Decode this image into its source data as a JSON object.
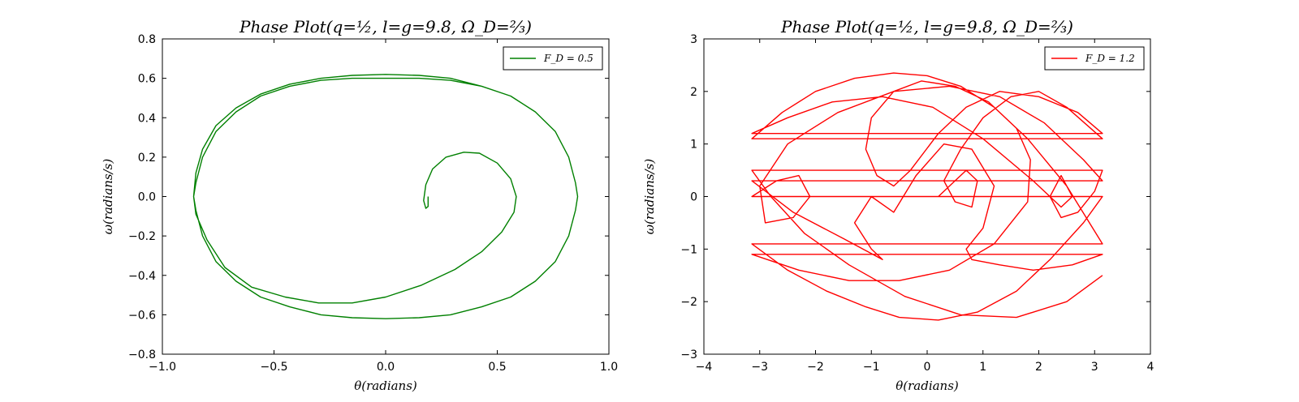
{
  "figure": {
    "background": "#ffffff"
  },
  "chart_data": [
    {
      "type": "line",
      "title": "Phase    Plot(q=½, l=g=9.8, Ω_D=⅔)",
      "xlabel": "θ(radians)",
      "ylabel": "ω(radians/s)",
      "xlim": [
        -1.0,
        1.0
      ],
      "ylim": [
        -0.8,
        0.8
      ],
      "xticks": [
        -1.0,
        -0.5,
        0.0,
        0.5,
        1.0
      ],
      "xtick_labels": [
        "−1.0",
        "−0.5",
        "0.0",
        "0.5",
        "1.0"
      ],
      "yticks": [
        -0.8,
        -0.6,
        -0.4,
        -0.2,
        0.0,
        0.2,
        0.4,
        0.6,
        0.8
      ],
      "ytick_labels": [
        "−0.8",
        "−0.6",
        "−0.4",
        "−0.2",
        "0.0",
        "0.2",
        "0.4",
        "0.6",
        "0.8"
      ],
      "grid": false,
      "legend_position": "top-right",
      "series": [
        {
          "name": "F_D = 0.5",
          "color": "#008000",
          "x": [
            0.19,
            0.19,
            0.18,
            0.17,
            0.18,
            0.21,
            0.27,
            0.35,
            0.42,
            0.5,
            0.56,
            0.585,
            0.575,
            0.52,
            0.43,
            0.31,
            0.16,
            0.0,
            -0.15,
            -0.3,
            -0.45,
            -0.6,
            -0.72,
            -0.8,
            -0.85,
            -0.86,
            -0.85,
            -0.82,
            -0.76,
            -0.67,
            -0.56,
            -0.43,
            -0.29,
            -0.15,
            0.0,
            0.15,
            0.29,
            0.43,
            0.56,
            0.67,
            0.76,
            0.82,
            0.85,
            0.86,
            0.85,
            0.82,
            0.76,
            0.67,
            0.56,
            0.43,
            0.29,
            0.15,
            0.0,
            -0.15,
            -0.29,
            -0.43,
            -0.56,
            -0.67,
            -0.76,
            -0.82,
            -0.85,
            -0.86,
            -0.85,
            -0.82,
            -0.76,
            -0.67,
            -0.56,
            -0.43,
            -0.29,
            -0.15,
            0.0,
            0.15,
            0.29,
            0.43,
            0.56,
            0.67,
            0.76,
            0.82,
            0.85,
            0.86
          ],
          "y": [
            0.0,
            -0.05,
            -0.06,
            -0.02,
            0.06,
            0.14,
            0.2,
            0.225,
            0.22,
            0.17,
            0.09,
            0.0,
            -0.08,
            -0.18,
            -0.28,
            -0.37,
            -0.45,
            -0.51,
            -0.54,
            -0.54,
            -0.51,
            -0.46,
            -0.36,
            -0.22,
            -0.09,
            0.0,
            0.12,
            0.24,
            0.36,
            0.45,
            0.52,
            0.57,
            0.6,
            0.615,
            0.62,
            0.615,
            0.6,
            0.56,
            0.51,
            0.43,
            0.33,
            0.2,
            0.07,
            0.0,
            -0.07,
            -0.2,
            -0.33,
            -0.43,
            -0.51,
            -0.56,
            -0.6,
            -0.615,
            -0.62,
            -0.615,
            -0.6,
            -0.56,
            -0.51,
            -0.43,
            -0.33,
            -0.2,
            -0.07,
            0.0,
            0.07,
            0.2,
            0.33,
            0.43,
            0.51,
            0.56,
            0.59,
            0.6,
            0.6,
            0.6,
            0.59,
            0.56,
            0.51,
            0.43,
            0.33,
            0.2,
            0.07,
            0.0
          ]
        }
      ]
    },
    {
      "type": "line",
      "title": "Phase    Plot(q=½, l=g=9.8, Ω_D=⅔)",
      "xlabel": "θ(radians)",
      "ylabel": "ω(radians/s)",
      "xlim": [
        -4,
        4
      ],
      "ylim": [
        -3,
        3
      ],
      "xticks": [
        -4,
        -3,
        -2,
        -1,
        0,
        1,
        2,
        3,
        4
      ],
      "xtick_labels": [
        "−4",
        "−3",
        "−2",
        "−1",
        "0",
        "1",
        "2",
        "3",
        "4"
      ],
      "yticks": [
        -3,
        -2,
        -1,
        0,
        1,
        2,
        3
      ],
      "ytick_labels": [
        "−3",
        "−2",
        "−1",
        "0",
        "1",
        "2",
        "3"
      ],
      "grid": false,
      "legend_position": "top-right",
      "series": [
        {
          "name": "F_D = 1.2",
          "color": "#ff0000",
          "x": [
            0.2,
            0.4,
            0.7,
            0.9,
            0.8,
            0.5,
            0.3,
            0.6,
            1.0,
            1.5,
            2.0,
            2.5,
            3.14,
            -3.14,
            -2.6,
            -2.0,
            -1.3,
            -0.6,
            0.0,
            0.6,
            1.2,
            1.8,
            2.5,
            3.14,
            -3.14,
            -2.5,
            -1.8,
            -1.1,
            -0.5,
            0.2,
            0.9,
            1.6,
            2.2,
            2.8,
            3.14,
            -3.14,
            -2.7,
            -2.3,
            -2.1,
            -2.4,
            -2.9,
            -3.0,
            -2.5,
            -1.6,
            -0.6,
            0.4,
            1.3,
            2.1,
            2.8,
            3.14,
            -3.14,
            -2.4,
            -1.5,
            -0.8,
            -1.0,
            -1.3,
            -1.0,
            -0.6,
            -0.2,
            0.3,
            0.8,
            1.2,
            1.0,
            0.7,
            0.8,
            1.3,
            1.9,
            2.6,
            3.14,
            -3.14,
            -2.3,
            -1.4,
            -0.5,
            0.4,
            1.2,
            1.8,
            1.85,
            1.6,
            1.1,
            0.5,
            -0.1,
            -0.6,
            -1.0,
            -1.1,
            -0.9,
            -0.6,
            -0.3,
            0.2,
            0.7,
            1.3,
            2.0,
            2.7,
            3.14,
            -3.14,
            -2.5,
            -1.7,
            -0.8,
            0.1,
            1.0,
            1.9,
            2.4,
            2.6,
            2.4,
            2.2,
            2.4,
            2.7,
            3.0,
            3.14,
            -3.14,
            -2.8,
            -2.2,
            -1.4,
            -0.4,
            0.6,
            1.6,
            2.5,
            3.14
          ],
          "y": [
            0.0,
            0.2,
            0.5,
            0.3,
            -0.2,
            -0.1,
            0.3,
            0.9,
            1.5,
            1.9,
            2.0,
            1.7,
            1.1,
            1.1,
            1.6,
            2.0,
            2.25,
            2.35,
            2.3,
            2.1,
            1.7,
            1.1,
            0.2,
            -0.9,
            -0.9,
            -1.4,
            -1.8,
            -2.1,
            -2.3,
            -2.35,
            -2.2,
            -1.8,
            -1.2,
            -0.5,
            0.0,
            0.0,
            0.3,
            0.4,
            0.0,
            -0.4,
            -0.5,
            0.2,
            1.0,
            1.6,
            2.0,
            2.1,
            1.9,
            1.4,
            0.7,
            0.3,
            0.3,
            -0.3,
            -0.8,
            -1.2,
            -1.0,
            -0.5,
            0.0,
            -0.3,
            0.4,
            1.0,
            0.9,
            0.2,
            -0.6,
            -1.0,
            -1.2,
            -1.3,
            -1.4,
            -1.3,
            -1.1,
            -1.1,
            -1.4,
            -1.6,
            -1.6,
            -1.4,
            -0.9,
            -0.1,
            0.7,
            1.3,
            1.8,
            2.1,
            2.2,
            2.0,
            1.5,
            0.9,
            0.4,
            0.2,
            0.5,
            1.2,
            1.7,
            2.0,
            1.9,
            1.6,
            1.2,
            1.2,
            1.5,
            1.8,
            1.9,
            1.7,
            1.1,
            0.3,
            -0.2,
            0.0,
            0.4,
            0.0,
            -0.4,
            -0.3,
            0.1,
            0.5,
            0.5,
            0.0,
            -0.7,
            -1.3,
            -1.9,
            -2.25,
            -2.3,
            -2.0,
            -1.5
          ]
        }
      ]
    }
  ]
}
